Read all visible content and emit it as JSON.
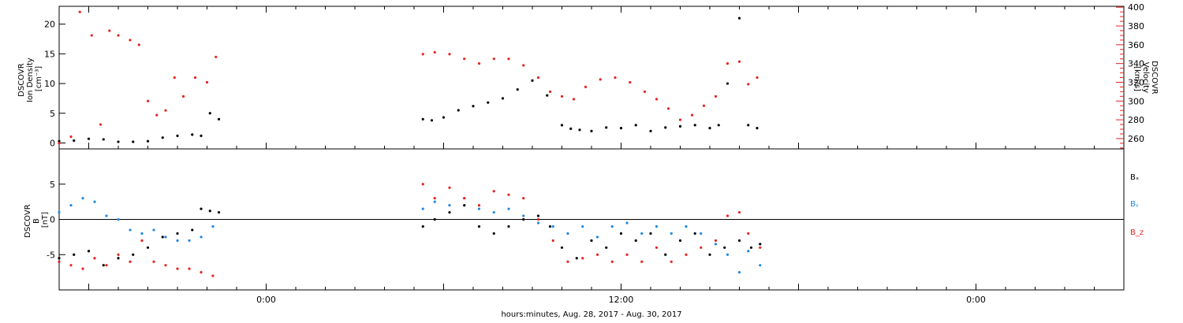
{
  "colors": {
    "black": "#000000",
    "red": "#e8231f",
    "blue": "#1e88e5",
    "axis": "#000000"
  },
  "x_axis": {
    "label": "hours:minutes, Aug. 28, 2017 - Aug. 30, 2017",
    "tick_labels": [
      "0:00",
      "12:00",
      "0:00"
    ],
    "range_hours": [
      -7,
      29
    ]
  },
  "chart_data": [
    {
      "type": "scatter",
      "panel": "plasma",
      "ylabel_left": [
        "DSCOVR",
        "Ion Density",
        "[cm⁻³]"
      ],
      "ylabel_right": [
        "DSCOVR",
        "Velocity",
        "[km/s]"
      ],
      "left_axis": {
        "ylim": [
          -1,
          23
        ],
        "ticks": [
          0,
          5,
          10,
          15,
          20
        ],
        "color": "#000000"
      },
      "right_axis": {
        "ylim": [
          249,
          401
        ],
        "ticks": [
          260,
          280,
          300,
          320,
          340,
          360,
          380,
          400
        ],
        "color": "#e8231f"
      },
      "series": [
        {
          "axis": "left",
          "color": "#000000",
          "x": [
            -7.0,
            -6.5,
            -6.0,
            -5.5,
            -5.0,
            -4.5,
            -4.0,
            -3.5,
            -3.0,
            -2.5,
            -2.2,
            -1.9,
            -1.6,
            5.3,
            5.6,
            6.0,
            6.5,
            7.0,
            7.5,
            8.0,
            8.5,
            9.0,
            9.5,
            10.0,
            10.3,
            10.6,
            11.0,
            11.5,
            12.0,
            12.5,
            13.0,
            13.5,
            14.0,
            14.5,
            15.0,
            15.3,
            15.6,
            16.0,
            16.3,
            16.6
          ],
          "y": [
            0.3,
            0.4,
            0.7,
            0.6,
            0.2,
            0.2,
            0.3,
            0.9,
            1.2,
            1.4,
            1.2,
            5.0,
            4.0,
            4.0,
            3.8,
            4.3,
            5.5,
            6.2,
            6.8,
            7.5,
            9.0,
            10.5,
            8.0,
            3.0,
            2.4,
            2.2,
            2.0,
            2.6,
            2.5,
            3.0,
            2.0,
            2.6,
            2.8,
            3.0,
            2.5,
            3.0,
            10.0,
            21.0,
            3.0,
            2.5
          ]
        },
        {
          "axis": "right",
          "color": "#e8231f",
          "x": [
            -7.0,
            -6.6,
            -6.3,
            -5.9,
            -5.6,
            -5.3,
            -5.0,
            -4.6,
            -4.3,
            -4.0,
            -3.7,
            -3.4,
            -3.1,
            -2.8,
            -2.4,
            -2.0,
            -1.7,
            5.3,
            5.7,
            6.2,
            6.7,
            7.2,
            7.7,
            8.2,
            8.7,
            9.2,
            9.6,
            10.0,
            10.4,
            10.8,
            11.3,
            11.8,
            12.3,
            12.8,
            13.2,
            13.6,
            14.0,
            14.4,
            14.8,
            15.2,
            15.6,
            16.0,
            16.3,
            16.6
          ],
          "y": [
            255,
            262,
            395,
            370,
            275,
            375,
            370,
            365,
            360,
            300,
            285,
            290,
            325,
            305,
            325,
            320,
            347,
            350,
            352,
            350,
            345,
            340,
            345,
            345,
            338,
            325,
            310,
            305,
            302,
            315,
            323,
            325,
            320,
            310,
            302,
            292,
            280,
            285,
            295,
            305,
            340,
            342,
            318,
            325
          ]
        }
      ]
    },
    {
      "type": "scatter",
      "panel": "magnetic",
      "ylabel_left": [
        "DSCOVR",
        "B",
        "[nT]"
      ],
      "yaxis": {
        "ylim": [
          -10,
          10
        ],
        "ticks": [
          -5,
          0,
          5
        ],
        "zero_line": true
      },
      "legend": {
        "position": "right",
        "entries": [
          "Bₓ",
          "Bᵧ",
          "B_z"
        ]
      },
      "series": [
        {
          "name": "Bₓ",
          "color": "#000000",
          "x": [
            -7.0,
            -6.5,
            -6.0,
            -5.5,
            -5.0,
            -4.5,
            -4.0,
            -3.5,
            -3.0,
            -2.5,
            -2.2,
            -1.9,
            -1.6,
            5.3,
            5.7,
            6.2,
            6.7,
            7.2,
            7.7,
            8.2,
            8.7,
            9.2,
            9.6,
            10.0,
            10.5,
            11.0,
            11.5,
            12.0,
            12.5,
            13.0,
            13.5,
            14.0,
            14.5,
            15.0,
            15.5,
            16.0,
            16.4,
            16.7
          ],
          "y": [
            -5.5,
            -5.0,
            -4.5,
            -6.5,
            -5.5,
            -5.0,
            -4.0,
            -2.5,
            -2.0,
            -1.5,
            1.5,
            1.2,
            1.0,
            -1.0,
            0.0,
            1.0,
            2.0,
            -1.0,
            -2.0,
            -1.0,
            0.0,
            0.5,
            -1.0,
            -4.0,
            -5.5,
            -3.0,
            -4.0,
            -2.0,
            -3.0,
            -2.0,
            -5.0,
            -3.0,
            -2.0,
            -5.0,
            -4.0,
            -3.0,
            -4.0,
            -3.5
          ]
        },
        {
          "name": "Bᵧ",
          "color": "#1e88e5",
          "x": [
            -7.0,
            -6.6,
            -6.2,
            -5.8,
            -5.4,
            -5.0,
            -4.6,
            -4.2,
            -3.8,
            -3.4,
            -3.0,
            -2.6,
            -2.2,
            -1.8,
            5.3,
            5.7,
            6.2,
            6.7,
            7.2,
            7.7,
            8.2,
            8.7,
            9.2,
            9.7,
            10.2,
            10.7,
            11.2,
            11.7,
            12.2,
            12.7,
            13.2,
            13.7,
            14.2,
            14.7,
            15.2,
            15.6,
            16.0,
            16.3,
            16.7
          ],
          "y": [
            1.0,
            2.0,
            3.0,
            2.5,
            0.5,
            0.0,
            -1.5,
            -2.0,
            -1.5,
            -2.5,
            -3.0,
            -3.0,
            -2.5,
            -1.0,
            1.5,
            2.5,
            2.0,
            3.0,
            1.5,
            1.0,
            1.5,
            0.5,
            -0.5,
            -1.0,
            -2.0,
            -1.0,
            -2.5,
            -1.0,
            -0.5,
            -2.0,
            -1.0,
            -2.0,
            -1.0,
            -2.0,
            -3.5,
            -5.0,
            -7.5,
            -4.5,
            -6.5
          ]
        },
        {
          "name": "B_z",
          "color": "#e8231f",
          "x": [
            -7.0,
            -6.6,
            -6.2,
            -5.8,
            -5.4,
            -5.0,
            -4.6,
            -4.2,
            -3.8,
            -3.4,
            -3.0,
            -2.6,
            -2.2,
            -1.8,
            5.3,
            5.7,
            6.2,
            6.7,
            7.2,
            7.7,
            8.2,
            8.7,
            9.2,
            9.7,
            10.2,
            10.7,
            11.2,
            11.7,
            12.2,
            12.7,
            13.2,
            13.7,
            14.2,
            14.7,
            15.2,
            15.6,
            16.0,
            16.3,
            16.7
          ],
          "y": [
            -6.0,
            -6.5,
            -7.0,
            -5.5,
            -6.5,
            -5.0,
            -6.0,
            -3.0,
            -6.0,
            -6.5,
            -7.0,
            -7.0,
            -7.5,
            -8.0,
            5.0,
            3.0,
            4.5,
            3.0,
            2.0,
            4.0,
            3.5,
            3.0,
            0.0,
            -3.0,
            -6.0,
            -5.5,
            -5.0,
            -6.0,
            -5.0,
            -6.0,
            -4.0,
            -6.0,
            -5.0,
            -4.0,
            -3.0,
            0.5,
            1.0,
            -2.0,
            -4.0
          ]
        }
      ]
    }
  ]
}
